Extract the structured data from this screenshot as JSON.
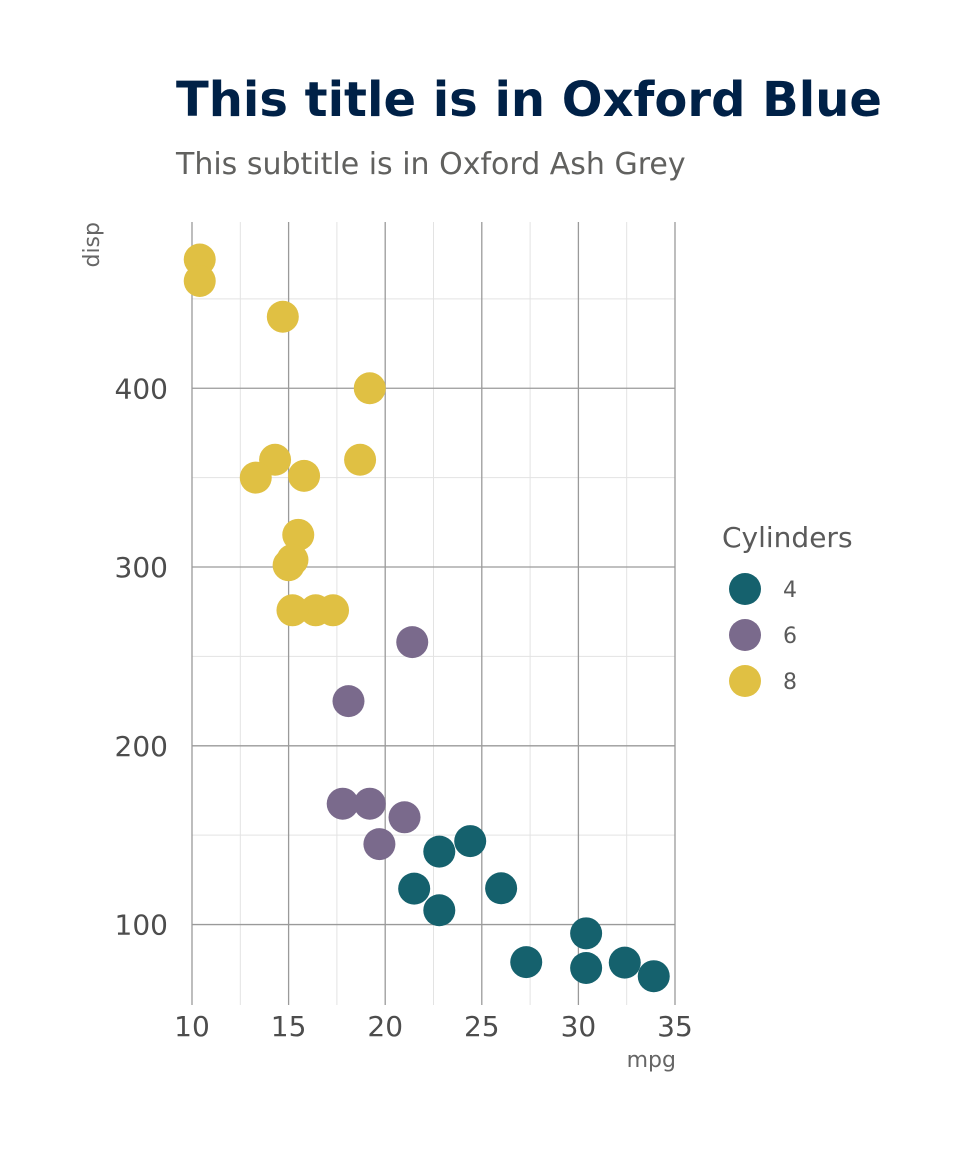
{
  "chart_data": {
    "type": "scatter",
    "title": "This title is in Oxford Blue",
    "subtitle": "This subtitle is in Oxford Ash Grey",
    "xlabel": "mpg",
    "ylabel": "disp",
    "xlim": [
      10,
      35
    ],
    "ylim": [
      55,
      493
    ],
    "x_ticks": [
      "10",
      "15",
      "20",
      "25",
      "30",
      "35"
    ],
    "y_ticks": [
      "100",
      "200",
      "300",
      "400"
    ],
    "grid": true,
    "legend_position": "right",
    "legend": {
      "title": "Cylinders",
      "entries": [
        "4",
        "6",
        "8"
      ]
    },
    "colors": {
      "title": "#002147",
      "subtitle": "#61615F",
      "4": "#15616D",
      "6": "#7A6A8C",
      "8": "#E0C043",
      "grid_major": "#9a9a9a",
      "grid_minor": "#e3e3e3"
    },
    "series": [
      {
        "name": "4",
        "points": [
          {
            "x": 22.8,
            "y": 108.0
          },
          {
            "x": 24.4,
            "y": 146.7
          },
          {
            "x": 22.8,
            "y": 140.8
          },
          {
            "x": 32.4,
            "y": 78.7
          },
          {
            "x": 30.4,
            "y": 75.7
          },
          {
            "x": 33.9,
            "y": 71.1
          },
          {
            "x": 21.5,
            "y": 120.1
          },
          {
            "x": 27.3,
            "y": 79.0
          },
          {
            "x": 26.0,
            "y": 120.3
          },
          {
            "x": 30.4,
            "y": 95.1
          }
        ]
      },
      {
        "name": "6",
        "points": [
          {
            "x": 21.0,
            "y": 160.0
          },
          {
            "x": 21.4,
            "y": 258.0
          },
          {
            "x": 18.1,
            "y": 225.0
          },
          {
            "x": 19.2,
            "y": 167.6
          },
          {
            "x": 17.8,
            "y": 167.6
          },
          {
            "x": 19.7,
            "y": 145.0
          }
        ]
      },
      {
        "name": "8",
        "points": [
          {
            "x": 18.7,
            "y": 360.0
          },
          {
            "x": 14.3,
            "y": 360.0
          },
          {
            "x": 16.4,
            "y": 275.8
          },
          {
            "x": 17.3,
            "y": 275.8
          },
          {
            "x": 15.2,
            "y": 275.8
          },
          {
            "x": 10.4,
            "y": 472.0
          },
          {
            "x": 10.4,
            "y": 460.0
          },
          {
            "x": 14.7,
            "y": 440.0
          },
          {
            "x": 15.5,
            "y": 318.0
          },
          {
            "x": 15.2,
            "y": 304.0
          },
          {
            "x": 13.3,
            "y": 350.0
          },
          {
            "x": 19.2,
            "y": 400.0
          },
          {
            "x": 15.8,
            "y": 351.0
          },
          {
            "x": 15.0,
            "y": 301.0
          }
        ]
      }
    ]
  }
}
